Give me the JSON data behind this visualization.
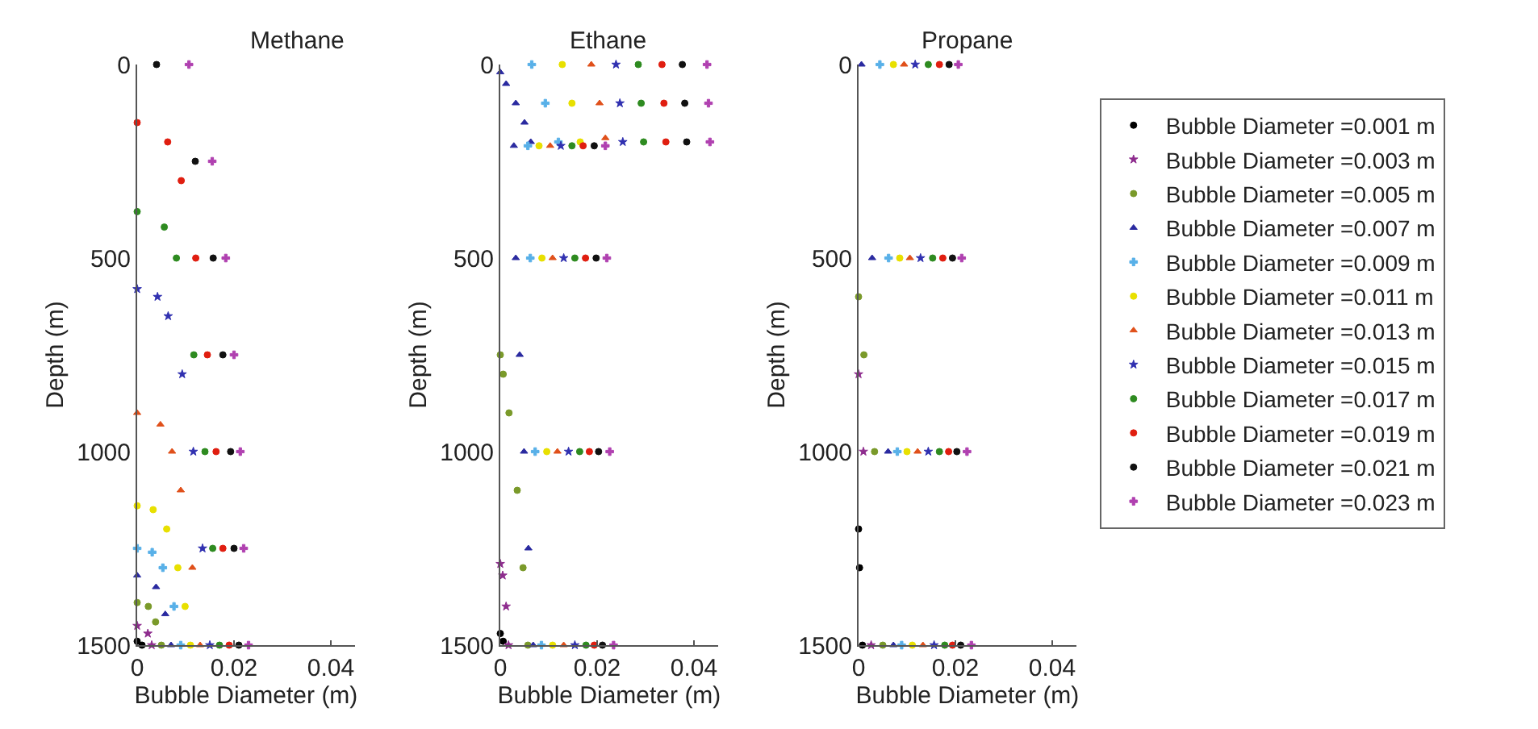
{
  "chart_data": [
    {
      "type": "scatter",
      "title": "Methane",
      "xlabel": "Bubble Diameter (m)",
      "ylabel": "Depth (m)",
      "xlim": [
        0,
        0.045
      ],
      "xticks": [
        0,
        0.02,
        0.04
      ],
      "ylim": [
        1500,
        0
      ],
      "yticks": [
        0,
        500,
        1000,
        1500
      ],
      "legend": false,
      "series": [
        {
          "color": "#000000",
          "marker": "circle",
          "x": [
            0.001,
            0
          ],
          "values": [
            1500,
            1490
          ]
        },
        {
          "color": "#8e2c8e",
          "marker": "star",
          "x": [
            0.003,
            0.0022,
            0
          ],
          "values": [
            1500,
            1470,
            1450
          ]
        },
        {
          "color": "#7a9a2a",
          "marker": "circle",
          "x": [
            0.005,
            0.0038,
            0.0023,
            0
          ],
          "values": [
            1500,
            1440,
            1400,
            1390
          ]
        },
        {
          "color": "#2a2aa0",
          "marker": "triangle",
          "x": [
            0.007,
            0.0058,
            0.0039,
            0
          ],
          "values": [
            1500,
            1420,
            1350,
            1320
          ]
        },
        {
          "color": "#58b0e8",
          "marker": "cross",
          "x": [
            0.009,
            0.0076,
            0.0053,
            0.0031,
            0
          ],
          "values": [
            1500,
            1400,
            1300,
            1260,
            1250
          ]
        },
        {
          "color": "#e8e000",
          "marker": "circle",
          "x": [
            0.011,
            0.0099,
            0.0084,
            0.0061,
            0.0033,
            0
          ],
          "values": [
            1500,
            1400,
            1300,
            1200,
            1150,
            1140
          ]
        },
        {
          "color": "#e0501a",
          "marker": "triangle",
          "x": [
            0.013,
            0.0114,
            0.009,
            0.0072,
            0.0048,
            0
          ],
          "values": [
            1500,
            1300,
            1100,
            1000,
            930,
            900
          ]
        },
        {
          "color": "#3030b0",
          "marker": "star",
          "x": [
            0.015,
            0.0135,
            0.0116,
            0.0093,
            0.0064,
            0.0042,
            0
          ],
          "values": [
            1500,
            1250,
            1000,
            800,
            650,
            600,
            580
          ]
        },
        {
          "color": "#2e8b20",
          "marker": "circle",
          "x": [
            0.017,
            0.0156,
            0.014,
            0.0117,
            0.0081,
            0.0056,
            0
          ],
          "values": [
            1500,
            1250,
            1000,
            750,
            500,
            420,
            380
          ]
        },
        {
          "color": "#e01e10",
          "marker": "circle",
          "x": [
            0.019,
            0.0177,
            0.0163,
            0.0145,
            0.0121,
            0.0091,
            0.0063,
            0
          ],
          "values": [
            1500,
            1250,
            1000,
            750,
            500,
            300,
            200,
            150
          ]
        },
        {
          "color": "#111111",
          "marker": "circle",
          "x": [
            0.021,
            0.02,
            0.0193,
            0.0177,
            0.0157,
            0.012,
            0.004
          ],
          "values": [
            1500,
            1250,
            1000,
            750,
            500,
            250,
            0
          ]
        },
        {
          "color": "#b040b0",
          "marker": "cross",
          "x": [
            0.023,
            0.022,
            0.0213,
            0.02,
            0.0183,
            0.0155,
            0.0107
          ],
          "values": [
            1500,
            1250,
            1000,
            750,
            500,
            250,
            0
          ]
        }
      ]
    },
    {
      "type": "scatter",
      "title": "Ethane",
      "xlabel": "Bubble Diameter (m)",
      "ylabel": "Depth (m)",
      "xlim": [
        0,
        0.045
      ],
      "xticks": [
        0,
        0.02,
        0.04
      ],
      "ylim": [
        1500,
        0
      ],
      "yticks": [
        0,
        500,
        1000,
        1500
      ],
      "legend": false,
      "series": [
        {
          "color": "#000000",
          "marker": "circle",
          "x": [
            0.0006,
            0
          ],
          "values": [
            1490,
            1470
          ]
        },
        {
          "color": "#8e2c8e",
          "marker": "star",
          "x": [
            0.0017,
            0.0012,
            0.0005,
            0
          ],
          "values": [
            1500,
            1400,
            1320,
            1290
          ]
        },
        {
          "color": "#7a9a2a",
          "marker": "circle",
          "x": [
            0.0057,
            0.0047,
            0.0035,
            0.0018,
            0.0006,
            0
          ],
          "values": [
            1500,
            1300,
            1100,
            900,
            800,
            750
          ]
        },
        {
          "color": "#2a2aa0",
          "marker": "triangle",
          "x": [
            0.0068,
            0.0058,
            0.0049,
            0.004,
            0.0032,
            0.0028,
            0.0063,
            0.005,
            0.0032,
            0.0012,
            0
          ],
          "values": [
            1500,
            1250,
            1000,
            750,
            500,
            210,
            200,
            150,
            100,
            50,
            20
          ]
        },
        {
          "color": "#58b0e8",
          "marker": "cross",
          "x": [
            0.0085,
            0.0072,
            0.0062,
            0.0057,
            0.012,
            0.0093,
            0.0065
          ],
          "values": [
            1500,
            1000,
            500,
            210,
            200,
            100,
            0
          ]
        },
        {
          "color": "#e8e000",
          "marker": "circle",
          "x": [
            0.0108,
            0.0096,
            0.0086,
            0.008,
            0.0165,
            0.0148,
            0.0128
          ],
          "values": [
            1500,
            1000,
            500,
            210,
            200,
            100,
            0
          ]
        },
        {
          "color": "#e0501a",
          "marker": "triangle",
          "x": [
            0.0131,
            0.0118,
            0.0108,
            0.0103,
            0.0217,
            0.0205,
            0.0188
          ],
          "values": [
            1500,
            1000,
            500,
            210,
            190,
            100,
            0
          ]
        },
        {
          "color": "#3030b0",
          "marker": "star",
          "x": [
            0.0154,
            0.0141,
            0.0131,
            0.0125,
            0.0253,
            0.0247,
            0.0239
          ],
          "values": [
            1500,
            1000,
            500,
            210,
            200,
            100,
            0
          ]
        },
        {
          "color": "#2e8b20",
          "marker": "circle",
          "x": [
            0.0177,
            0.0164,
            0.0154,
            0.0148,
            0.0296,
            0.0291,
            0.0285
          ],
          "values": [
            1500,
            1000,
            500,
            210,
            200,
            100,
            0
          ]
        },
        {
          "color": "#e01e10",
          "marker": "circle",
          "x": [
            0.0194,
            0.0184,
            0.0176,
            0.0171,
            0.0342,
            0.0338,
            0.0334
          ],
          "values": [
            1500,
            1000,
            500,
            210,
            200,
            100,
            0
          ]
        },
        {
          "color": "#111111",
          "marker": "circle",
          "x": [
            0.0211,
            0.0203,
            0.0198,
            0.0194,
            0.0385,
            0.0381,
            0.0376
          ],
          "values": [
            1500,
            1000,
            500,
            210,
            200,
            100,
            0
          ]
        },
        {
          "color": "#b040b0",
          "marker": "cross",
          "x": [
            0.0234,
            0.0226,
            0.022,
            0.0217,
            0.0433,
            0.043,
            0.0427
          ],
          "values": [
            1500,
            1000,
            500,
            210,
            200,
            100,
            0
          ]
        }
      ]
    },
    {
      "type": "scatter",
      "title": "Propane",
      "xlabel": "Bubble Diameter (m)",
      "ylabel": "Depth (m)",
      "xlim": [
        0,
        0.045
      ],
      "xticks": [
        0,
        0.02,
        0.04
      ],
      "ylim": [
        1500,
        0
      ],
      "yticks": [
        0,
        500,
        1000,
        1500
      ],
      "legend": "right",
      "series": [
        {
          "name": "Bubble Diameter =0.001 m",
          "color": "#000000",
          "marker": "circle",
          "x": [
            0.0008,
            0.0002,
            0
          ],
          "values": [
            1500,
            1300,
            1200
          ]
        },
        {
          "name": "Bubble Diameter =0.003 m",
          "color": "#8e2c8e",
          "marker": "star",
          "x": [
            0.0026,
            0.001,
            0
          ],
          "values": [
            1500,
            1000,
            800
          ]
        },
        {
          "name": "Bubble Diameter =0.005 m",
          "color": "#7a9a2a",
          "marker": "circle",
          "x": [
            0.005,
            0.0033,
            0.0011,
            0
          ],
          "values": [
            1500,
            1000,
            750,
            600
          ]
        },
        {
          "name": "Bubble Diameter =0.007 m",
          "color": "#2a2aa0",
          "marker": "triangle",
          "x": [
            0.0072,
            0.0061,
            0.0028,
            0.0006
          ],
          "values": [
            1500,
            1000,
            500,
            0
          ]
        },
        {
          "name": "Bubble Diameter =0.009 m",
          "color": "#58b0e8",
          "marker": "cross",
          "x": [
            0.0089,
            0.008,
            0.0062,
            0.0044
          ],
          "values": [
            1500,
            1000,
            500,
            0
          ]
        },
        {
          "name": "Bubble Diameter =0.011 m",
          "color": "#e8e000",
          "marker": "circle",
          "x": [
            0.0111,
            0.01,
            0.0085,
            0.0072
          ],
          "values": [
            1500,
            1000,
            500,
            0
          ]
        },
        {
          "name": "Bubble Diameter =0.013 m",
          "color": "#e0501a",
          "marker": "triangle",
          "x": [
            0.0133,
            0.0122,
            0.0106,
            0.0094
          ],
          "values": [
            1500,
            1000,
            500,
            0
          ]
        },
        {
          "name": "Bubble Diameter =0.015 m",
          "color": "#3030b0",
          "marker": "star",
          "x": [
            0.0156,
            0.0144,
            0.0128,
            0.0117
          ],
          "values": [
            1500,
            1000,
            500,
            0
          ]
        },
        {
          "name": "Bubble Diameter =0.017 m",
          "color": "#2e8b20",
          "marker": "circle",
          "x": [
            0.0178,
            0.0167,
            0.0153,
            0.0144
          ],
          "values": [
            1500,
            1000,
            500,
            0
          ]
        },
        {
          "name": "Bubble Diameter =0.019 m",
          "color": "#e01e10",
          "marker": "circle",
          "x": [
            0.0194,
            0.0186,
            0.0174,
            0.0167
          ],
          "values": [
            1500,
            1000,
            500,
            0
          ]
        },
        {
          "name": "Bubble Diameter =0.021 m",
          "color": "#111111",
          "marker": "circle",
          "x": [
            0.0211,
            0.0203,
            0.0194,
            0.0187
          ],
          "values": [
            1500,
            1000,
            500,
            0
          ]
        },
        {
          "name": "Bubble Diameter =0.023 m",
          "color": "#b040b0",
          "marker": "cross",
          "x": [
            0.0233,
            0.0224,
            0.0213,
            0.0206
          ],
          "values": [
            1500,
            1000,
            500,
            0
          ]
        }
      ]
    }
  ]
}
